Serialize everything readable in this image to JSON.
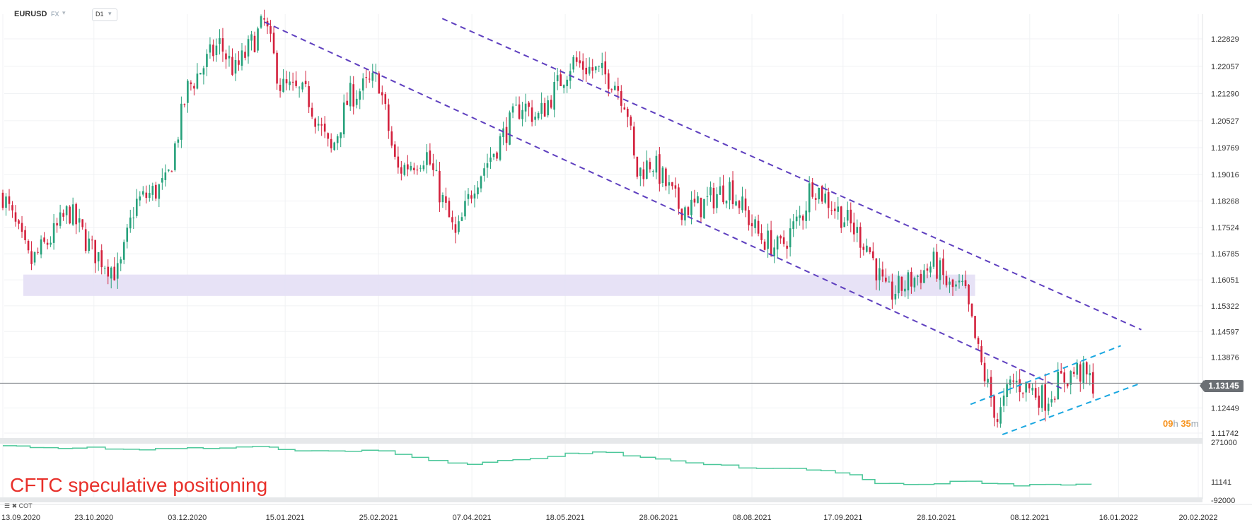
{
  "toolbar": {
    "symbol": "EURUSD",
    "market": "FX",
    "timeframe": "D1"
  },
  "indicator_panel": {
    "title": "CFTC speculative positioning",
    "tag": "COT",
    "axis_labels": [
      "271000",
      "11141",
      "-92000"
    ]
  },
  "current_price": "1.13145",
  "countdown": {
    "hours": "09",
    "hours_unit": "h",
    "minutes": "35",
    "minutes_unit": "m"
  },
  "colors": {
    "bull": "#26a17b",
    "bear": "#d3213d",
    "channel": "#5e3fbf",
    "rising_channel": "#1aa7e0",
    "zone": "#e4dff5",
    "cot_line": "#4cc79a",
    "title": "#e8302a"
  },
  "chart_data": [
    {
      "type": "candlestick",
      "title": "",
      "x_ticks": [
        "13.09.2020",
        "23.10.2020",
        "03.12.2020",
        "15.01.2021",
        "25.02.2021",
        "07.04.2021",
        "18.05.2021",
        "28.06.2021",
        "08.08.2021",
        "17.09.2021",
        "28.10.2021",
        "08.12.2021",
        "16.01.2022",
        "20.02.2022"
      ],
      "y_ticks": [
        "1.22829",
        "1.22057",
        "1.21290",
        "1.20527",
        "1.19769",
        "1.19016",
        "1.18268",
        "1.17524",
        "1.16785",
        "1.16051",
        "1.15322",
        "1.14597",
        "1.13876",
        "1.13145",
        "1.12449",
        "1.11742"
      ],
      "ylim": [
        1.1165,
        1.2325
      ],
      "last_price": 1.13145,
      "price_path": [
        {
          "date": "2020-09-13",
          "price": 1.1845
        },
        {
          "date": "2020-09-25",
          "price": 1.165
        },
        {
          "date": "2020-10-05",
          "price": 1.173
        },
        {
          "date": "2020-10-12",
          "price": 1.18
        },
        {
          "date": "2020-10-22",
          "price": 1.169
        },
        {
          "date": "2020-11-03",
          "price": 1.162
        },
        {
          "date": "2020-11-10",
          "price": 1.182
        },
        {
          "date": "2020-11-24",
          "price": 1.1875
        },
        {
          "date": "2020-12-03",
          "price": 1.214
        },
        {
          "date": "2020-12-17",
          "price": 1.227
        },
        {
          "date": "2020-12-24",
          "price": 1.219
        },
        {
          "date": "2021-01-06",
          "price": 1.233
        },
        {
          "date": "2021-01-13",
          "price": 1.215
        },
        {
          "date": "2021-01-25",
          "price": 1.212
        },
        {
          "date": "2021-02-04",
          "price": 1.196
        },
        {
          "date": "2021-02-12",
          "price": 1.212
        },
        {
          "date": "2021-02-25",
          "price": 1.217
        },
        {
          "date": "2021-03-05",
          "price": 1.191
        },
        {
          "date": "2021-03-18",
          "price": 1.196
        },
        {
          "date": "2021-03-31",
          "price": 1.172
        },
        {
          "date": "2021-04-08",
          "price": 1.188
        },
        {
          "date": "2021-04-16",
          "price": 1.196
        },
        {
          "date": "2021-04-29",
          "price": 1.21
        },
        {
          "date": "2021-05-06",
          "price": 1.206
        },
        {
          "date": "2021-05-21",
          "price": 1.222
        },
        {
          "date": "2021-06-08",
          "price": 1.217
        },
        {
          "date": "2021-06-14",
          "price": 1.21
        },
        {
          "date": "2021-06-18",
          "price": 1.19
        },
        {
          "date": "2021-06-25",
          "price": 1.194
        },
        {
          "date": "2021-07-07",
          "price": 1.181
        },
        {
          "date": "2021-07-16",
          "price": 1.181
        },
        {
          "date": "2021-07-29",
          "price": 1.187
        },
        {
          "date": "2021-08-11",
          "price": 1.173
        },
        {
          "date": "2021-08-20",
          "price": 1.169
        },
        {
          "date": "2021-08-31",
          "price": 1.18
        },
        {
          "date": "2021-09-03",
          "price": 1.188
        },
        {
          "date": "2021-09-16",
          "price": 1.179
        },
        {
          "date": "2021-09-28",
          "price": 1.17
        },
        {
          "date": "2021-10-06",
          "price": 1.156
        },
        {
          "date": "2021-10-14",
          "price": 1.159
        },
        {
          "date": "2021-10-27",
          "price": 1.165
        },
        {
          "date": "2021-11-03",
          "price": 1.158
        },
        {
          "date": "2021-11-09",
          "price": 1.158
        },
        {
          "date": "2021-11-16",
          "price": 1.138
        },
        {
          "date": "2021-11-24",
          "price": 1.121
        },
        {
          "date": "2021-11-30",
          "price": 1.132
        },
        {
          "date": "2021-12-08",
          "price": 1.13
        },
        {
          "date": "2021-12-15",
          "price": 1.127
        },
        {
          "date": "2021-12-21",
          "price": 1.132
        },
        {
          "date": "2021-12-29",
          "price": 1.135
        },
        {
          "date": "2022-01-05",
          "price": 1.1314
        }
      ],
      "support_zone": {
        "y": [
          1.156,
          1.162
        ],
        "x": [
          "2020-09-22",
          "2021-11-14"
        ]
      },
      "lines": [
        {
          "name": "channel-upper",
          "style": "dashed",
          "color": "#5e3fbf",
          "points": [
            [
              "2021-03-25",
              1.234
            ],
            [
              "2022-01-26",
              1.1465
            ]
          ]
        },
        {
          "name": "channel-lower",
          "style": "dashed",
          "color": "#5e3fbf",
          "points": [
            [
              "2021-01-06",
              1.233
            ],
            [
              "2021-12-22",
              1.13
            ]
          ]
        },
        {
          "name": "rising-upper",
          "style": "dashed",
          "color": "#1aa7e0",
          "points": [
            [
              "2021-11-12",
              1.1255
            ],
            [
              "2022-01-17",
              1.142
            ]
          ]
        },
        {
          "name": "rising-lower",
          "style": "dashed",
          "color": "#1aa7e0",
          "points": [
            [
              "2021-11-26",
              1.117
            ],
            [
              "2022-01-26",
              1.1315
            ]
          ]
        }
      ]
    },
    {
      "type": "line",
      "title": "CFTC speculative positioning",
      "ylim": [
        -92000,
        271000
      ],
      "y_ticks": [
        "271000",
        "11141",
        "-92000"
      ],
      "points": [
        {
          "date": "2020-09-13",
          "value": 267000
        },
        {
          "date": "2020-10-01",
          "value": 255000
        },
        {
          "date": "2020-10-20",
          "value": 258000
        },
        {
          "date": "2020-11-05",
          "value": 245000
        },
        {
          "date": "2020-12-10",
          "value": 250000
        },
        {
          "date": "2021-01-08",
          "value": 258000
        },
        {
          "date": "2021-01-12",
          "value": 243000
        },
        {
          "date": "2021-02-25",
          "value": 235000
        },
        {
          "date": "2021-03-19",
          "value": 175000
        },
        {
          "date": "2021-04-05",
          "value": 150000
        },
        {
          "date": "2021-04-25",
          "value": 180000
        },
        {
          "date": "2021-05-18",
          "value": 220000
        },
        {
          "date": "2021-06-05",
          "value": 225000
        },
        {
          "date": "2021-06-20",
          "value": 195000
        },
        {
          "date": "2021-07-10",
          "value": 160000
        },
        {
          "date": "2021-08-10",
          "value": 125000
        },
        {
          "date": "2021-09-01",
          "value": 115000
        },
        {
          "date": "2021-09-20",
          "value": 85000
        },
        {
          "date": "2021-10-01",
          "value": 30000
        },
        {
          "date": "2021-10-20",
          "value": 25000
        },
        {
          "date": "2021-11-10",
          "value": 45000
        },
        {
          "date": "2021-12-01",
          "value": 15000
        },
        {
          "date": "2021-12-15",
          "value": 25000
        },
        {
          "date": "2022-01-04",
          "value": 25000
        }
      ]
    }
  ]
}
